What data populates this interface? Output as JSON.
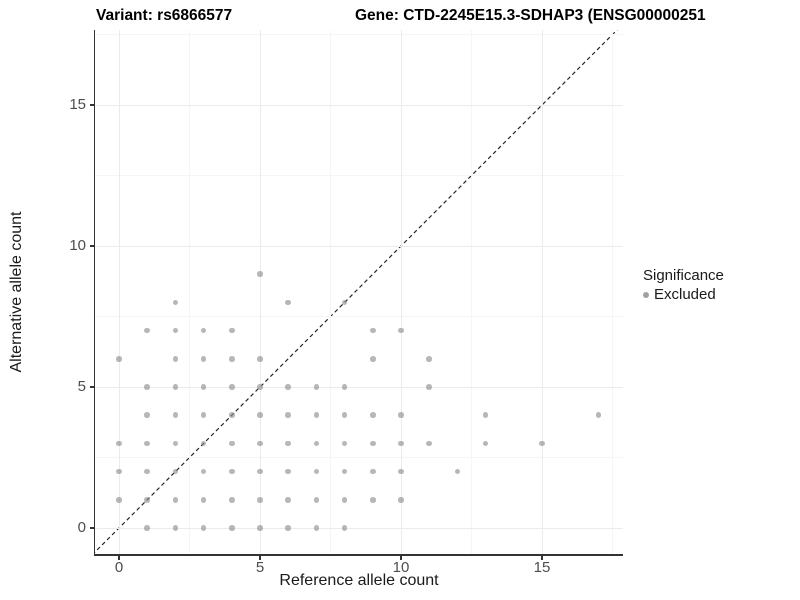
{
  "titles": {
    "variant": "Variant: rs6866577",
    "gene": "Gene: CTD-2245E15.3-SDHAP3 (ENSG00000251"
  },
  "chart_data": {
    "type": "scatter",
    "title_left": "Variant: rs6866577",
    "title_right": "Gene: CTD-2245E15.3-SDHAP3 (ENSG00000251",
    "xlabel": "Reference allele count",
    "ylabel": "Alternative allele count",
    "x_ticks": [
      0,
      5,
      10,
      15
    ],
    "y_ticks": [
      0,
      5,
      10,
      15
    ],
    "x_minor_ticks": [
      2.5,
      7.5,
      12.5,
      17.5
    ],
    "y_minor_ticks": [
      2.5,
      7.5,
      12.5,
      17.5
    ],
    "xlim": [
      0,
      17
    ],
    "ylim": [
      0,
      17
    ],
    "grid": true,
    "identity_line": {
      "style": "dashed",
      "color": "#262626"
    },
    "legend": {
      "title": "Significance",
      "position": "right"
    },
    "point_color": "#8a8a8a",
    "point_opacity": 0.62,
    "series": [
      {
        "name": "Excluded",
        "color": "#8a8a8a",
        "points": [
          [
            1,
            0
          ],
          [
            2,
            0
          ],
          [
            3,
            0
          ],
          [
            4,
            0
          ],
          [
            5,
            0
          ],
          [
            6,
            0
          ],
          [
            7,
            0
          ],
          [
            8,
            0
          ],
          [
            0,
            1
          ],
          [
            1,
            1
          ],
          [
            2,
            1
          ],
          [
            3,
            1
          ],
          [
            4,
            1
          ],
          [
            5,
            1
          ],
          [
            6,
            1
          ],
          [
            7,
            1
          ],
          [
            8,
            1
          ],
          [
            9,
            1
          ],
          [
            10,
            1
          ],
          [
            0,
            2
          ],
          [
            1,
            2
          ],
          [
            2,
            2
          ],
          [
            3,
            2
          ],
          [
            4,
            2
          ],
          [
            5,
            2
          ],
          [
            6,
            2
          ],
          [
            7,
            2
          ],
          [
            8,
            2
          ],
          [
            9,
            2
          ],
          [
            10,
            2
          ],
          [
            12,
            2
          ],
          [
            0,
            3
          ],
          [
            1,
            3
          ],
          [
            2,
            3
          ],
          [
            3,
            3
          ],
          [
            4,
            3
          ],
          [
            5,
            3
          ],
          [
            6,
            3
          ],
          [
            7,
            3
          ],
          [
            8,
            3
          ],
          [
            9,
            3
          ],
          [
            10,
            3
          ],
          [
            11,
            3
          ],
          [
            13,
            3
          ],
          [
            15,
            3
          ],
          [
            1,
            4
          ],
          [
            2,
            4
          ],
          [
            3,
            4
          ],
          [
            4,
            4
          ],
          [
            5,
            4
          ],
          [
            6,
            4
          ],
          [
            7,
            4
          ],
          [
            8,
            4
          ],
          [
            9,
            4
          ],
          [
            10,
            4
          ],
          [
            13,
            4
          ],
          [
            17,
            4
          ],
          [
            1,
            5
          ],
          [
            2,
            5
          ],
          [
            3,
            5
          ],
          [
            4,
            5
          ],
          [
            5,
            5
          ],
          [
            6,
            5
          ],
          [
            7,
            5
          ],
          [
            8,
            5
          ],
          [
            11,
            5
          ],
          [
            0,
            6
          ],
          [
            2,
            6
          ],
          [
            3,
            6
          ],
          [
            4,
            6
          ],
          [
            5,
            6
          ],
          [
            9,
            6
          ],
          [
            11,
            6
          ],
          [
            1,
            7
          ],
          [
            2,
            7
          ],
          [
            3,
            7
          ],
          [
            4,
            7
          ],
          [
            9,
            7
          ],
          [
            10,
            7
          ],
          [
            2,
            8
          ],
          [
            6,
            8
          ],
          [
            8,
            8
          ],
          [
            5,
            9
          ]
        ]
      }
    ]
  }
}
